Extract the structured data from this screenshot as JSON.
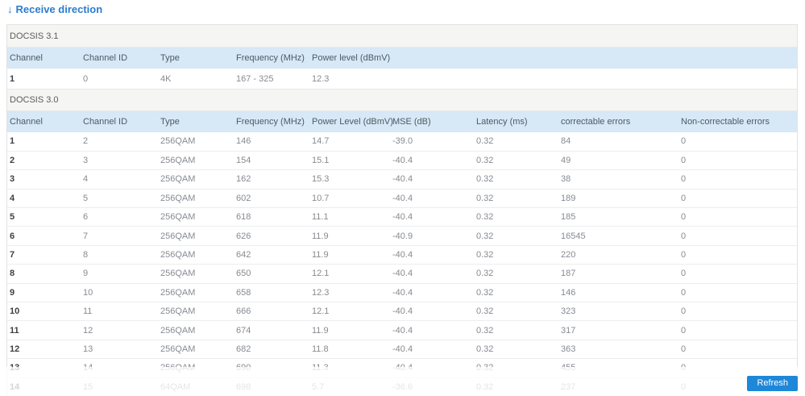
{
  "page": {
    "arrow": "↓",
    "title": "Receive direction"
  },
  "docsis31": {
    "section_label": "DOCSIS 3.1",
    "columns": [
      "Channel",
      "Channel ID",
      "Type",
      "Frequency (MHz)",
      "Power level (dBmV)"
    ],
    "rows": [
      [
        "1",
        "0",
        "4K",
        "167 - 325",
        "12.3"
      ]
    ]
  },
  "docsis30": {
    "section_label": "DOCSIS 3.0",
    "columns": [
      "Channel",
      "Channel ID",
      "Type",
      "Frequency (MHz)",
      "Power Level (dBmV)",
      "MSE (dB)",
      "Latency (ms)",
      "correctable errors",
      "Non-correctable errors"
    ],
    "rows": [
      [
        "1",
        "2",
        "256QAM",
        "146",
        "14.7",
        "-39.0",
        "0.32",
        "84",
        "0"
      ],
      [
        "2",
        "3",
        "256QAM",
        "154",
        "15.1",
        "-40.4",
        "0.32",
        "49",
        "0"
      ],
      [
        "3",
        "4",
        "256QAM",
        "162",
        "15.3",
        "-40.4",
        "0.32",
        "38",
        "0"
      ],
      [
        "4",
        "5",
        "256QAM",
        "602",
        "10.7",
        "-40.4",
        "0.32",
        "189",
        "0"
      ],
      [
        "5",
        "6",
        "256QAM",
        "618",
        "11.1",
        "-40.4",
        "0.32",
        "185",
        "0"
      ],
      [
        "6",
        "7",
        "256QAM",
        "626",
        "11.9",
        "-40.9",
        "0.32",
        "16545",
        "0"
      ],
      [
        "7",
        "8",
        "256QAM",
        "642",
        "11.9",
        "-40.4",
        "0.32",
        "220",
        "0"
      ],
      [
        "8",
        "9",
        "256QAM",
        "650",
        "12.1",
        "-40.4",
        "0.32",
        "187",
        "0"
      ],
      [
        "9",
        "10",
        "256QAM",
        "658",
        "12.3",
        "-40.4",
        "0.32",
        "146",
        "0"
      ],
      [
        "10",
        "11",
        "256QAM",
        "666",
        "12.1",
        "-40.4",
        "0.32",
        "323",
        "0"
      ],
      [
        "11",
        "12",
        "256QAM",
        "674",
        "11.9",
        "-40.4",
        "0.32",
        "317",
        "0"
      ],
      [
        "12",
        "13",
        "256QAM",
        "682",
        "11.8",
        "-40.4",
        "0.32",
        "363",
        "0"
      ],
      [
        "13",
        "14",
        "256QAM",
        "690",
        "11.3",
        "-40.4",
        "0.32",
        "455",
        "0"
      ],
      [
        "14",
        "15",
        "64QAM",
        "698",
        "5.7",
        "-36.6",
        "0.32",
        "237",
        "0"
      ]
    ]
  },
  "footer": {
    "refresh_label": "Refresh"
  },
  "colors": {
    "accent_blue": "#2b7ccc",
    "button_blue": "#1e87d8",
    "table_header_bg": "#d7e8f6",
    "section_bg": "#f5f5f4"
  }
}
